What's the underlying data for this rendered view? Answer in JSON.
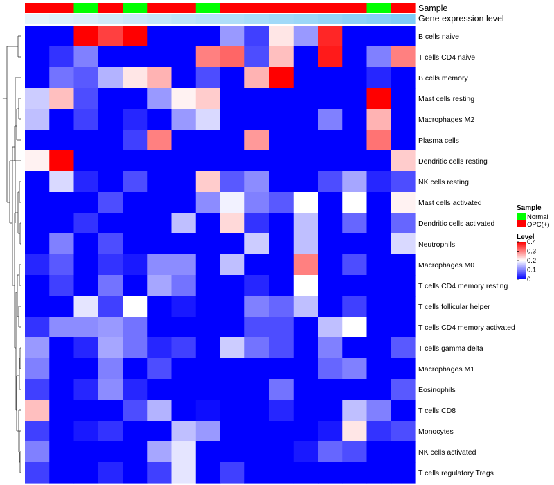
{
  "chart_data": {
    "type": "heatmap",
    "annotation_tracks": [
      {
        "name": "Sample",
        "values": [
          "OPC(+)",
          "OPC(+)",
          "Normal",
          "OPC(+)",
          "Normal",
          "OPC(+)",
          "OPC(+)",
          "Normal",
          "OPC(+)",
          "OPC(+)",
          "OPC(+)",
          "OPC(+)",
          "OPC(+)",
          "OPC(+)",
          "Normal",
          "OPC(+)"
        ]
      },
      {
        "name": "Gene expression level",
        "values": [
          0,
          0.07,
          0.13,
          0.2,
          0.27,
          0.33,
          0.4,
          0.47,
          0.53,
          0.6,
          0.67,
          0.73,
          0.8,
          0.87,
          0.93,
          1.0
        ]
      }
    ],
    "rows": [
      "B cells naive",
      "T cells CD4 naive",
      "B cells memory",
      "Mast cells resting",
      "Macrophages M2",
      "Plasma cells",
      "Dendritic cells resting",
      "NK cells resting",
      "Mast cells activated",
      "Dendritic cells activated",
      "Neutrophils",
      "Macrophages M0",
      "T cells CD4 memory resting",
      "T cells follicular helper",
      "T cells CD4 memory activated",
      "T cells gamma delta",
      "Macrophages M1",
      "Eosinophils",
      "T cells CD8",
      "Monocytes",
      "NK cells activated",
      "T cells regulatory  Tregs"
    ],
    "values": [
      [
        0,
        0,
        0.4,
        0.35,
        0.4,
        0,
        0,
        0,
        0.12,
        0.05,
        0.22,
        0.12,
        0.37,
        0,
        0,
        0
      ],
      [
        0,
        0.04,
        0.1,
        0,
        0,
        0,
        0,
        0.3,
        0.32,
        0.06,
        0.25,
        0,
        0.38,
        0,
        0.1,
        0.3
      ],
      [
        0,
        0.09,
        0.07,
        0.14,
        0.22,
        0.26,
        0,
        0.06,
        0,
        0.26,
        0.4,
        0,
        0,
        0,
        0.03,
        0
      ],
      [
        0.16,
        0.25,
        0.06,
        0,
        0,
        0.12,
        0.21,
        0.24,
        0,
        0,
        0,
        0,
        0,
        0,
        0.4,
        0
      ],
      [
        0.15,
        0,
        0.05,
        0,
        0.03,
        0,
        0.12,
        0.17,
        0,
        0,
        0,
        0,
        0.1,
        0,
        0.26,
        0
      ],
      [
        0,
        0,
        0,
        0,
        0.05,
        0.3,
        0,
        0,
        0,
        0.28,
        0,
        0,
        0,
        0,
        0.31,
        0
      ],
      [
        0.21,
        0.4,
        0,
        0,
        0,
        0,
        0,
        0,
        0,
        0,
        0,
        0,
        0,
        0,
        0,
        0.24
      ],
      [
        0,
        0.17,
        0.03,
        0,
        0.06,
        0,
        0,
        0.24,
        0.07,
        0.11,
        0,
        0,
        0.06,
        0.13,
        0.03,
        0.06
      ],
      [
        0,
        0,
        0,
        0.06,
        0,
        0,
        0,
        0.11,
        0.19,
        0.1,
        0.07,
        0.2,
        0,
        0.2,
        0,
        0.21
      ],
      [
        0,
        0,
        0.04,
        0,
        0,
        0,
        0.15,
        0,
        0.23,
        0.04,
        0,
        0.15,
        0,
        0.08,
        0,
        0.08
      ],
      [
        0,
        0.1,
        0,
        0.06,
        0,
        0,
        0,
        0,
        0,
        0.16,
        0,
        0.15,
        0,
        0,
        0,
        0.17
      ],
      [
        0.03,
        0.07,
        0,
        0.04,
        0.02,
        0.11,
        0.11,
        0,
        0.15,
        0,
        0,
        0.3,
        0,
        0.06,
        0,
        0
      ],
      [
        0,
        0.05,
        0,
        0.09,
        0,
        0.13,
        0.09,
        0,
        0,
        0.03,
        0,
        0.2,
        0,
        0,
        0,
        0
      ],
      [
        0,
        0,
        0.18,
        0.05,
        0.2,
        0,
        0.02,
        0,
        0,
        0.1,
        0.08,
        0.15,
        0,
        0.05,
        0,
        0
      ],
      [
        0.04,
        0.11,
        0.11,
        0.12,
        0.09,
        0,
        0,
        0,
        0,
        0.06,
        0.06,
        0,
        0.15,
        0.2,
        0,
        0
      ],
      [
        0.12,
        0,
        0.03,
        0.13,
        0.09,
        0.03,
        0.05,
        0,
        0.16,
        0.09,
        0.06,
        0,
        0.1,
        0,
        0,
        0.07
      ],
      [
        0.1,
        0,
        0,
        0.1,
        0,
        0.06,
        0,
        0,
        0,
        0,
        0,
        0,
        0.08,
        0.1,
        0,
        0
      ],
      [
        0.05,
        0,
        0.03,
        0.11,
        0.03,
        0,
        0,
        0,
        0,
        0,
        0.09,
        0,
        0,
        0,
        0,
        0.07
      ],
      [
        0.25,
        0,
        0,
        0,
        0.06,
        0.14,
        0,
        0.01,
        0,
        0,
        0.03,
        0,
        0,
        0.15,
        0.1,
        0
      ],
      [
        0.05,
        0,
        0.02,
        0.04,
        0,
        0,
        0.15,
        0.12,
        0,
        0,
        0,
        0,
        0.02,
        0.22,
        0.04,
        0.06
      ],
      [
        0.1,
        0,
        0,
        0,
        0,
        0.13,
        0.18,
        0,
        0,
        0,
        0,
        0.02,
        0.08,
        0.06,
        0,
        0
      ],
      [
        0.05,
        0,
        0,
        0.03,
        0,
        0.05,
        0.18,
        0,
        0.05,
        0,
        0,
        0,
        0,
        0,
        0,
        0
      ]
    ],
    "color_scale": {
      "low": "#0000ff",
      "mid": "#ffffff",
      "high": "#ff0000",
      "range": [
        0,
        0.4
      ]
    },
    "legend": {
      "sample_title": "Sample",
      "sample_entries": [
        {
          "label": "Normal",
          "color": "#00ff00"
        },
        {
          "label": "OPC(+)",
          "color": "#ff0000"
        }
      ],
      "level_title": "Level",
      "level_ticks": [
        "0.4",
        "0.3",
        "0.2",
        "0.1",
        "0"
      ],
      "placement": "right"
    },
    "dendrogram": "rows"
  },
  "colors": {
    "normal": "#00ff00",
    "opc": "#ff0000",
    "expr_low": "#e6f3fb",
    "expr_high": "#7fccf7"
  }
}
